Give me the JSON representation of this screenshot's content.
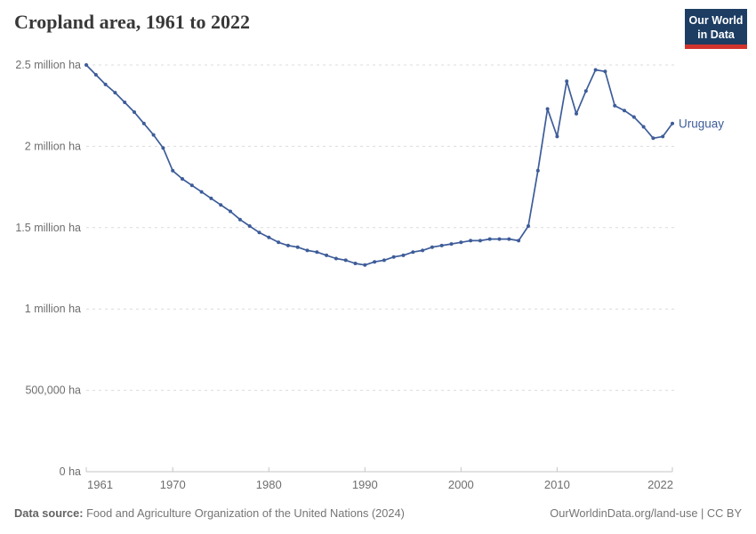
{
  "header": {
    "title": "Cropland area, 1961 to 2022",
    "logo": {
      "line1": "Our World",
      "line2": "in Data",
      "bg_color": "#1d3d63",
      "bar_color": "#d0342c"
    }
  },
  "chart_data": {
    "type": "line",
    "title": "Cropland area, 1961 to 2022",
    "xlabel": "",
    "ylabel": "",
    "xlim": [
      1961,
      2022
    ],
    "ylim": [
      0,
      2500000
    ],
    "grid": "horizontal-dashed",
    "legend_position": "line-end-label",
    "x_ticks": [
      1961,
      1970,
      1980,
      1990,
      2000,
      2010,
      2022
    ],
    "y_ticks": [
      {
        "value": 0,
        "label": "0 ha"
      },
      {
        "value": 500000,
        "label": "500,000 ha"
      },
      {
        "value": 1000000,
        "label": "1 million ha"
      },
      {
        "value": 1500000,
        "label": "1.5 million ha"
      },
      {
        "value": 2000000,
        "label": "2 million ha"
      },
      {
        "value": 2500000,
        "label": "2.5 million ha"
      }
    ],
    "series": [
      {
        "name": "Uruguay",
        "color": "#3d5c99",
        "x": [
          1961,
          1962,
          1963,
          1964,
          1965,
          1966,
          1967,
          1968,
          1969,
          1970,
          1971,
          1972,
          1973,
          1974,
          1975,
          1976,
          1977,
          1978,
          1979,
          1980,
          1981,
          1982,
          1983,
          1984,
          1985,
          1986,
          1987,
          1988,
          1989,
          1990,
          1991,
          1992,
          1993,
          1994,
          1995,
          1996,
          1997,
          1998,
          1999,
          2000,
          2001,
          2002,
          2003,
          2004,
          2005,
          2006,
          2007,
          2008,
          2009,
          2010,
          2011,
          2012,
          2013,
          2014,
          2015,
          2016,
          2017,
          2018,
          2019,
          2020,
          2021,
          2022
        ],
        "values": [
          2500000,
          2440000,
          2380000,
          2330000,
          2270000,
          2210000,
          2140000,
          2070000,
          1990000,
          1850000,
          1800000,
          1760000,
          1720000,
          1680000,
          1640000,
          1600000,
          1550000,
          1510000,
          1470000,
          1440000,
          1410000,
          1390000,
          1380000,
          1360000,
          1350000,
          1330000,
          1310000,
          1300000,
          1280000,
          1270000,
          1290000,
          1300000,
          1320000,
          1330000,
          1350000,
          1360000,
          1380000,
          1390000,
          1400000,
          1410000,
          1420000,
          1420000,
          1430000,
          1430000,
          1430000,
          1420000,
          1510000,
          1850000,
          2230000,
          2060000,
          2400000,
          2200000,
          2340000,
          2470000,
          2460000,
          2250000,
          2220000,
          2180000,
          2120000,
          2050000,
          2060000,
          2140000
        ]
      }
    ]
  },
  "footer": {
    "source_label": "Data source:",
    "source_text": " Food and Agriculture Organization of the United Nations (2024)",
    "credit": "OurWorldinData.org/land-use | CC BY"
  }
}
